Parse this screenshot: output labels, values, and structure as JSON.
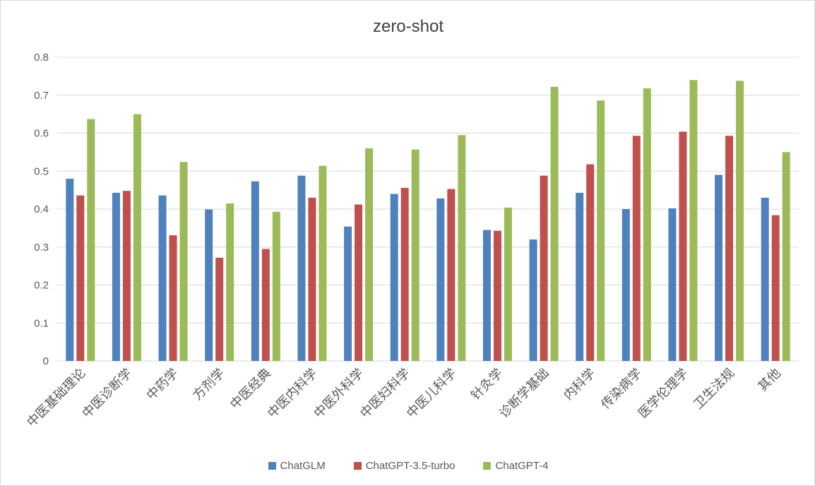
{
  "chart_data": {
    "type": "bar",
    "title": "zero-shot",
    "xlabel": "",
    "ylabel": "",
    "ylim": [
      0,
      0.8
    ],
    "yticks": [
      "0",
      "0.1",
      "0.2",
      "0.3",
      "0.4",
      "0.5",
      "0.6",
      "0.7",
      "0.8"
    ],
    "grid": true,
    "legend_position": "bottom",
    "categories": [
      "中医基础理论",
      "中医诊断学",
      "中药学",
      "方剂学",
      "中医经典",
      "中医内科学",
      "中医外科学",
      "中医妇科学",
      "中医儿科学",
      "针灸学",
      "诊断学基础",
      "内科学",
      "传染病学",
      "医学伦理学",
      "卫生法规",
      "其他"
    ],
    "series": [
      {
        "name": "ChatGLM",
        "color": "#4f81bd",
        "values": [
          0.48,
          0.443,
          0.436,
          0.399,
          0.473,
          0.488,
          0.354,
          0.44,
          0.428,
          0.345,
          0.32,
          0.443,
          0.4,
          0.402,
          0.49,
          0.43
        ]
      },
      {
        "name": "ChatGPT-3.5-turbo",
        "color": "#c0504d",
        "values": [
          0.436,
          0.448,
          0.331,
          0.272,
          0.295,
          0.43,
          0.412,
          0.456,
          0.453,
          0.343,
          0.488,
          0.518,
          0.593,
          0.604,
          0.593,
          0.384
        ]
      },
      {
        "name": "ChatGPT-4",
        "color": "#9bbb59",
        "values": [
          0.637,
          0.65,
          0.524,
          0.415,
          0.393,
          0.514,
          0.56,
          0.557,
          0.595,
          0.404,
          0.722,
          0.686,
          0.718,
          0.74,
          0.738,
          0.55
        ]
      }
    ]
  }
}
